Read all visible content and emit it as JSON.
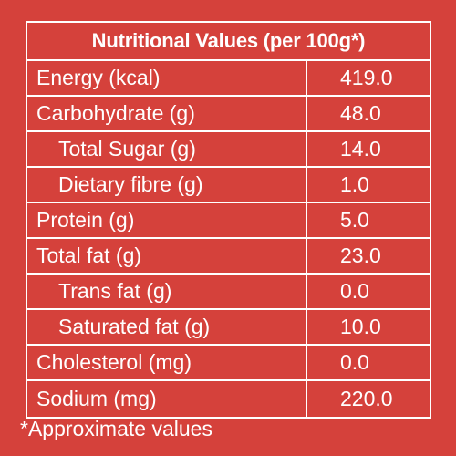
{
  "title": "Nutritional Values (per 100g*)",
  "rows": [
    {
      "label": "Energy (kcal)",
      "value": "419.0",
      "indent": false
    },
    {
      "label": "Carbohydrate (g)",
      "value": "48.0",
      "indent": false
    },
    {
      "label": "Total Sugar (g)",
      "value": "14.0",
      "indent": true
    },
    {
      "label": "Dietary fibre (g)",
      "value": "1.0",
      "indent": true
    },
    {
      "label": "Protein (g)",
      "value": "5.0",
      "indent": false
    },
    {
      "label": "Total fat (g)",
      "value": "23.0",
      "indent": false
    },
    {
      "label": "Trans fat (g)",
      "value": "0.0",
      "indent": true
    },
    {
      "label": "Saturated fat (g)",
      "value": "10.0",
      "indent": true
    },
    {
      "label": "Cholesterol (mg)",
      "value": "0.0",
      "indent": false
    },
    {
      "label": "Sodium (mg)",
      "value": "220.0",
      "indent": false
    }
  ],
  "footnote": "*Approximate values",
  "colors": {
    "background": "#d5413b",
    "text": "#ffffff",
    "border": "#ffffff"
  }
}
